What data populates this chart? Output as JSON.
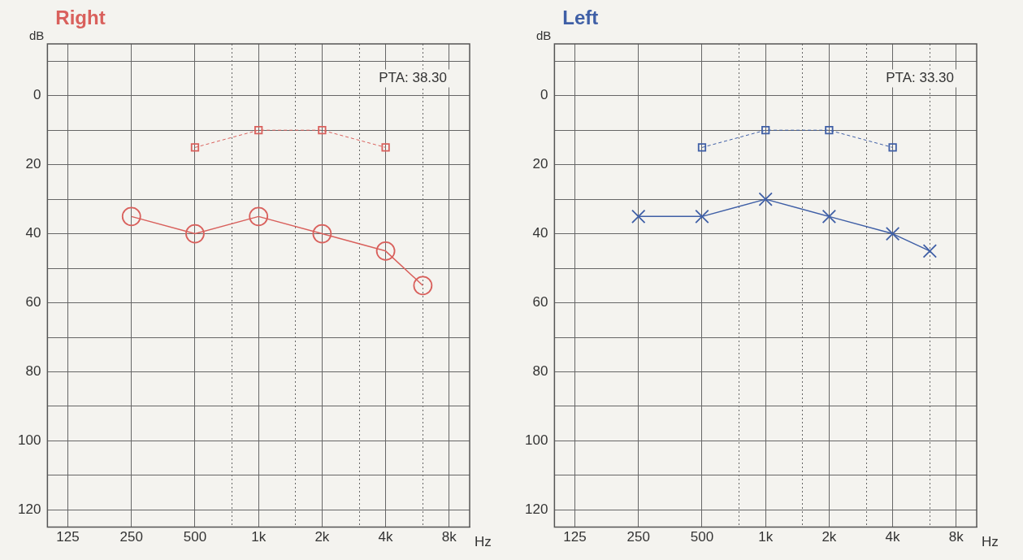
{
  "chart_data": [
    {
      "type": "line",
      "title": "Right",
      "xlabel": "Hz",
      "ylabel": "dB",
      "annotations": [
        "PTA: 38.30"
      ],
      "log": "x",
      "grid": true,
      "xlim": [
        100,
        10000
      ],
      "xticks": [
        125,
        250,
        500,
        {
          "value": 750,
          "label": null
        },
        {
          "value": 1000,
          "label": "1k"
        },
        {
          "value": 1500,
          "label": null
        },
        {
          "value": 2000,
          "label": "2k"
        },
        {
          "value": 3000,
          "label": null
        },
        {
          "value": 4000,
          "label": "4k"
        },
        {
          "value": 6000,
          "label": null
        },
        {
          "value": 8000,
          "label": "8k"
        }
      ],
      "ylim": [
        125,
        -15
      ],
      "yticks": [
        {
          "value": -10,
          "label": null
        },
        0,
        {
          "value": 10,
          "label": null
        },
        20,
        {
          "value": 30,
          "label": null
        },
        40,
        {
          "value": 50,
          "label": null
        },
        60,
        {
          "value": 70,
          "label": null
        },
        80,
        {
          "value": 90,
          "label": null
        },
        100,
        {
          "value": 110,
          "label": null
        },
        120
      ],
      "series": [
        {
          "color": "#d9605c",
          "x": [
            250,
            500,
            1000,
            2000,
            4000,
            6000
          ],
          "values": [
            35,
            40,
            35,
            40,
            45,
            55
          ],
          "marker": "circle",
          "line_style": "solid"
        },
        {
          "color": "#d9605c",
          "x": [
            500,
            1000,
            2000,
            4000
          ],
          "values": [
            15,
            10,
            10,
            15
          ],
          "marker": "square",
          "line_style": "dashed"
        }
      ]
    },
    {
      "type": "line",
      "title": "Left",
      "xlabel": "Hz",
      "ylabel": "dB",
      "annotations": [
        "PTA: 33.30"
      ],
      "log": "x",
      "grid": true,
      "xlim": [
        100,
        10000
      ],
      "xticks": [
        125,
        250,
        500,
        {
          "value": 750,
          "label": null
        },
        {
          "value": 1000,
          "label": "1k"
        },
        {
          "value": 1500,
          "label": null
        },
        {
          "value": 2000,
          "label": "2k"
        },
        {
          "value": 3000,
          "label": null
        },
        {
          "value": 4000,
          "label": "4k"
        },
        {
          "value": 6000,
          "label": null
        },
        {
          "value": 8000,
          "label": "8k"
        }
      ],
      "ylim": [
        125,
        -15
      ],
      "yticks": [
        {
          "value": -10,
          "label": null
        },
        0,
        {
          "value": 10,
          "label": null
        },
        20,
        {
          "value": 30,
          "label": null
        },
        40,
        {
          "value": 50,
          "label": null
        },
        60,
        {
          "value": 70,
          "label": null
        },
        80,
        {
          "value": 90,
          "label": null
        },
        100,
        {
          "value": 110,
          "label": null
        },
        120
      ],
      "series": [
        {
          "color": "#3f5fa6",
          "x": [
            250,
            500,
            1000,
            2000,
            4000,
            6000
          ],
          "values": [
            35,
            35,
            30,
            35,
            40,
            45
          ],
          "marker": "cross",
          "line_style": "solid"
        },
        {
          "color": "#3f5fa6",
          "x": [
            500,
            1000,
            2000,
            4000
          ],
          "values": [
            15,
            10,
            10,
            15
          ],
          "marker": "square",
          "line_style": "dashed"
        }
      ]
    }
  ]
}
